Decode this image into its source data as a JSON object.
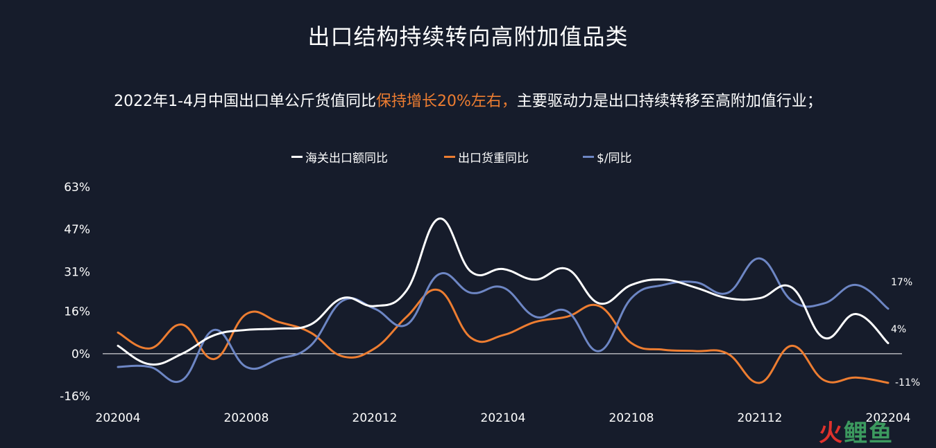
{
  "title": "出口结构持续转向高附加值品类",
  "subtitle": {
    "prefix": "2022年1-4月中国出口单公斤货值同比",
    "highlight": "保持增长20%左右，",
    "suffix": "主要驱动力是出口持续转移至高附加值行业；"
  },
  "watermark": {
    "part1": "火",
    "part2": "鲤鱼"
  },
  "colors": {
    "background": "#161c2b",
    "accent": "#ed7d31"
  },
  "chart_data": {
    "type": "line",
    "x_tick_labels": [
      "202004",
      "202008",
      "202012",
      "202104",
      "202108",
      "202112",
      "202204"
    ],
    "y_tick_labels": [
      "63%",
      "47%",
      "31%",
      "16%",
      "0%",
      "-16%"
    ],
    "y_tick_values": [
      63,
      47,
      31,
      16,
      0,
      -16
    ],
    "ylim": [
      -16,
      63
    ],
    "x": [
      "202004",
      "202005",
      "202006",
      "202007",
      "202008",
      "202009",
      "202010",
      "202011",
      "202012",
      "202101",
      "202102",
      "202103",
      "202104",
      "202105",
      "202106",
      "202107",
      "202108",
      "202109",
      "202110",
      "202111",
      "202112",
      "202201",
      "202202",
      "202203",
      "202204"
    ],
    "series": [
      {
        "name": "海关出口额同比",
        "color": "#ffffff",
        "values": [
          3,
          -4,
          0,
          7,
          9,
          9.5,
          11,
          21,
          18,
          24,
          51,
          31,
          32,
          28,
          32,
          19,
          26,
          28,
          25,
          21,
          21,
          25,
          6,
          15,
          4
        ],
        "end_label": "4%"
      },
      {
        "name": "出口货重同比",
        "color": "#ed7d31",
        "values": [
          8,
          2,
          11,
          -2,
          15,
          12,
          8,
          -1,
          2,
          14,
          24,
          6,
          7,
          12,
          14,
          18,
          4,
          1.5,
          1,
          0,
          -11,
          3,
          -10,
          -9,
          -11
        ],
        "end_label": "-11%"
      },
      {
        "name": "$/同比",
        "color": "#6d86c4",
        "values": [
          -5,
          -5,
          -10,
          9,
          -5,
          -2,
          3,
          20,
          17,
          11,
          30,
          23,
          25,
          14,
          16,
          1,
          21,
          26,
          27,
          23,
          36,
          20,
          19,
          26,
          17
        ],
        "end_label": "17%"
      }
    ]
  }
}
